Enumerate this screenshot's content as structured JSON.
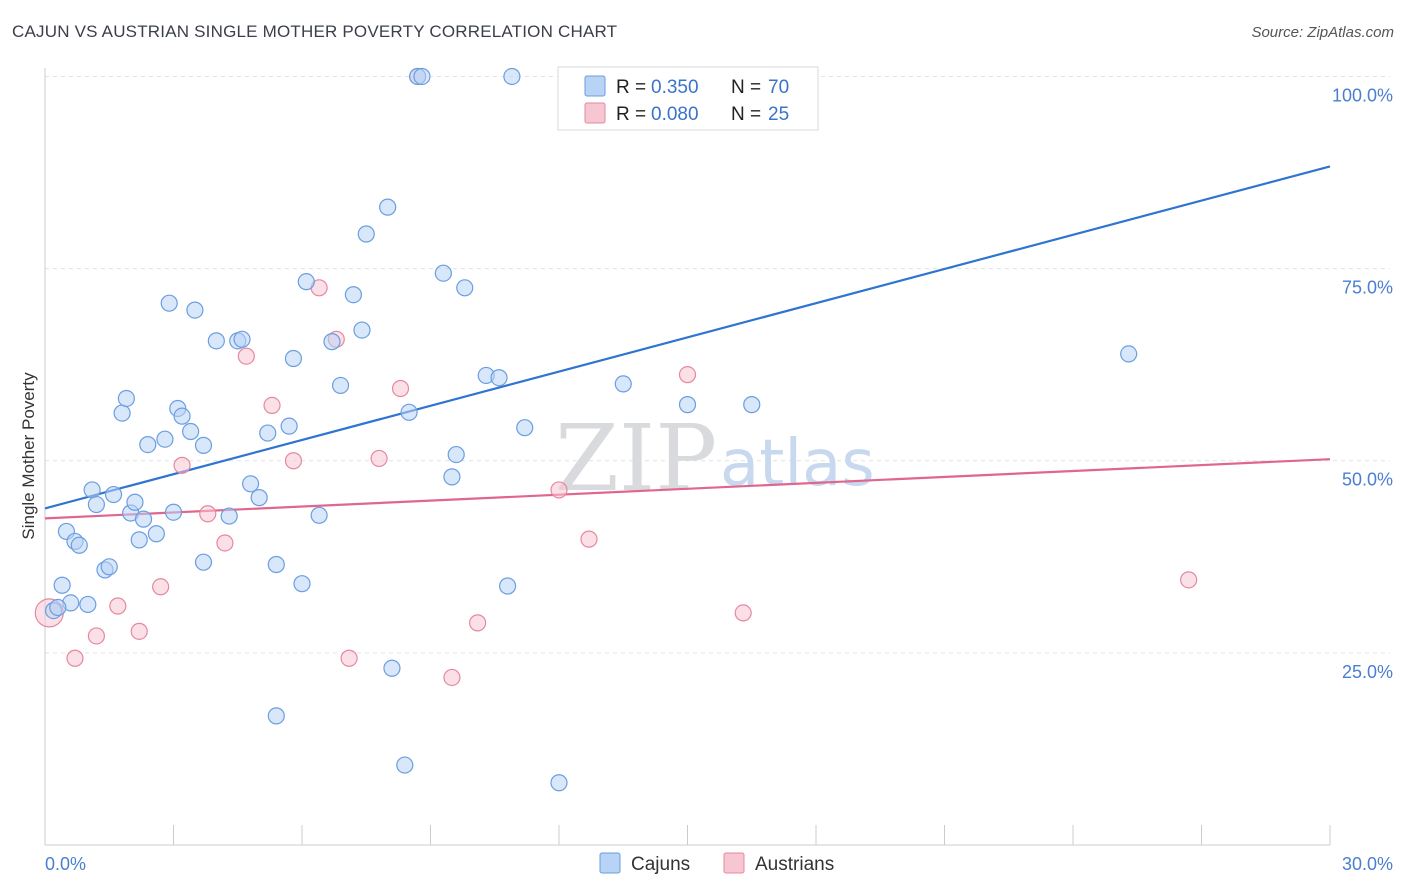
{
  "title": "CAJUN VS AUSTRIAN SINGLE MOTHER POVERTY CORRELATION CHART",
  "source": "Source: ZipAtlas.com",
  "colors": {
    "cajun_fill": "#b8d3f5",
    "cajun_stroke": "#6b9ee0",
    "cajun_line": "#2f74d0",
    "austrian_fill": "#f7c6d3",
    "austrian_stroke": "#e6889f",
    "austrian_line": "#e0668d",
    "tick_text": "#4a7fd0"
  },
  "legend": {
    "rows": [
      {
        "r_label": "R =",
        "r_value": "0.350",
        "n_label": "N =",
        "n_value": "70"
      },
      {
        "r_label": "R =",
        "r_value": "0.080",
        "n_label": "N =",
        "n_value": "25"
      }
    ]
  },
  "bottom_legend": {
    "items": [
      "Cajuns",
      "Austrians"
    ]
  },
  "watermark": {
    "zip": "ZIP",
    "atlas": "atlas"
  },
  "chart_data": {
    "type": "scatter",
    "title": "CAJUN VS AUSTRIAN SINGLE MOTHER POVERTY CORRELATION CHART",
    "xlabel": "",
    "ylabel": "Single Mother Poverty",
    "xlim": [
      0,
      30
    ],
    "ylim": [
      0,
      102
    ],
    "x_tick_labels": [
      "0.0%",
      "30.0%"
    ],
    "y_tick_values": [
      25,
      50,
      75,
      100
    ],
    "y_tick_labels": [
      "25.0%",
      "50.0%",
      "75.0%",
      "100.0%"
    ],
    "grid": "horizontal dashed",
    "legend_position": "top-center",
    "series": [
      {
        "name": "Cajuns",
        "r": 0.35,
        "n": 70,
        "trend": {
          "x": [
            0,
            30
          ],
          "y": [
            43.8,
            88.3
          ]
        },
        "points": [
          [
            0.2,
            30.5
          ],
          [
            0.4,
            33.8
          ],
          [
            0.6,
            31.5
          ],
          [
            0.5,
            40.8
          ],
          [
            0.7,
            39.5
          ],
          [
            0.8,
            39.0
          ],
          [
            1.0,
            31.3
          ],
          [
            1.1,
            46.2
          ],
          [
            1.2,
            44.3
          ],
          [
            1.4,
            35.8
          ],
          [
            1.5,
            36.2
          ],
          [
            1.6,
            45.6
          ],
          [
            1.8,
            56.2
          ],
          [
            1.9,
            58.1
          ],
          [
            2.0,
            43.2
          ],
          [
            2.1,
            44.6
          ],
          [
            2.2,
            39.7
          ],
          [
            2.3,
            42.4
          ],
          [
            2.4,
            52.1
          ],
          [
            2.6,
            40.5
          ],
          [
            2.8,
            52.8
          ],
          [
            2.9,
            70.5
          ],
          [
            3.0,
            43.3
          ],
          [
            3.1,
            56.8
          ],
          [
            3.2,
            55.8
          ],
          [
            3.4,
            53.8
          ],
          [
            3.5,
            69.6
          ],
          [
            3.7,
            52.0
          ],
          [
            3.7,
            36.8
          ],
          [
            4.0,
            65.6
          ],
          [
            4.3,
            42.8
          ],
          [
            4.5,
            65.6
          ],
          [
            4.6,
            65.8
          ],
          [
            4.8,
            47.0
          ],
          [
            5.0,
            45.2
          ],
          [
            5.2,
            53.6
          ],
          [
            5.4,
            16.8
          ],
          [
            5.4,
            36.5
          ],
          [
            5.7,
            54.5
          ],
          [
            5.8,
            63.3
          ],
          [
            6.0,
            34.0
          ],
          [
            6.1,
            73.3
          ],
          [
            6.4,
            42.9
          ],
          [
            6.7,
            65.5
          ],
          [
            6.9,
            59.8
          ],
          [
            7.2,
            71.6
          ],
          [
            7.4,
            67.0
          ],
          [
            7.5,
            79.5
          ],
          [
            8.0,
            83.0
          ],
          [
            8.1,
            23.0
          ],
          [
            8.4,
            10.4
          ],
          [
            8.5,
            56.3
          ],
          [
            8.7,
            100.0
          ],
          [
            8.8,
            100.0
          ],
          [
            9.3,
            74.4
          ],
          [
            9.5,
            47.9
          ],
          [
            9.6,
            50.8
          ],
          [
            9.8,
            72.5
          ],
          [
            10.3,
            61.1
          ],
          [
            10.6,
            60.8
          ],
          [
            10.8,
            33.7
          ],
          [
            10.9,
            100.0
          ],
          [
            11.2,
            54.3
          ],
          [
            12.0,
            8.1
          ],
          [
            13.0,
            100.0
          ],
          [
            13.5,
            60.0
          ],
          [
            15.0,
            57.3
          ],
          [
            16.5,
            57.3
          ],
          [
            25.3,
            63.9
          ],
          [
            0.3,
            30.9
          ]
        ]
      },
      {
        "name": "Austrians",
        "r": 0.08,
        "n": 25,
        "trend": {
          "x": [
            0,
            30
          ],
          "y": [
            42.5,
            50.2
          ]
        },
        "points": [
          [
            0.1,
            30.2
          ],
          [
            0.7,
            24.3
          ],
          [
            1.2,
            27.2
          ],
          [
            1.7,
            31.1
          ],
          [
            2.2,
            27.8
          ],
          [
            2.7,
            33.6
          ],
          [
            3.2,
            49.4
          ],
          [
            3.8,
            43.1
          ],
          [
            4.2,
            39.3
          ],
          [
            4.7,
            63.6
          ],
          [
            5.3,
            57.2
          ],
          [
            5.8,
            50.0
          ],
          [
            6.4,
            72.5
          ],
          [
            6.8,
            65.8
          ],
          [
            7.1,
            24.3
          ],
          [
            7.8,
            50.3
          ],
          [
            8.3,
            59.4
          ],
          [
            8.7,
            100.0
          ],
          [
            9.5,
            21.8
          ],
          [
            10.1,
            28.9
          ],
          [
            12.0,
            46.2
          ],
          [
            12.7,
            39.8
          ],
          [
            15.0,
            61.2
          ],
          [
            16.3,
            30.2
          ],
          [
            26.7,
            34.5
          ]
        ]
      }
    ]
  }
}
